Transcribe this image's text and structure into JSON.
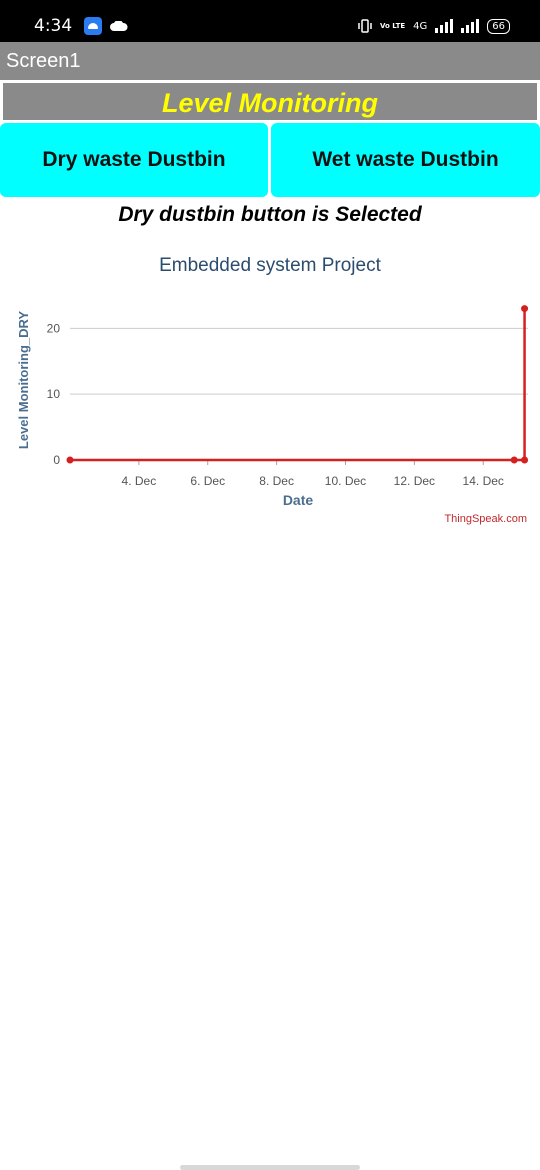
{
  "status_bar": {
    "time": "4:34",
    "network_type": "4G",
    "volte": "Vo LTE",
    "battery": "66",
    "icons": [
      "app-notification-icon",
      "cloud-icon",
      "vibrate-icon",
      "volte-icon",
      "signal-icon",
      "signal-icon",
      "battery-icon"
    ]
  },
  "app": {
    "screen_title": "Screen1",
    "heading": "Level Monitoring",
    "buttons": {
      "dry_label": "Dry waste Dustbin",
      "wet_label": "Wet waste Dustbin"
    },
    "selection_text": "Dry dustbin button is Selected"
  },
  "colors": {
    "accent_button": "#00ffff",
    "heading_text": "#ffff00",
    "bar_gray": "#8a8a8a",
    "series": "#d62020"
  },
  "chart": {
    "title": "Embedded system Project",
    "credit": "ThingSpeak.com"
  },
  "chart_data": {
    "type": "line",
    "title": "Embedded system Project",
    "xlabel": "Date",
    "ylabel": "Level Monitoring_DRY",
    "x_ticks": [
      "4. Dec",
      "6. Dec",
      "8. Dec",
      "10. Dec",
      "12. Dec",
      "14. Dec"
    ],
    "y_ticks": [
      0,
      10,
      20
    ],
    "ylim": [
      0,
      24
    ],
    "grid": true,
    "series": [
      {
        "color": "#d62020",
        "points": [
          {
            "x": "2 Dec",
            "y": 0
          },
          {
            "x": "14.9 Dec",
            "y": 0
          },
          {
            "x": "15.2 Dec",
            "y": 0
          },
          {
            "x": "15.2 Dec",
            "y": 23
          }
        ]
      }
    ]
  }
}
